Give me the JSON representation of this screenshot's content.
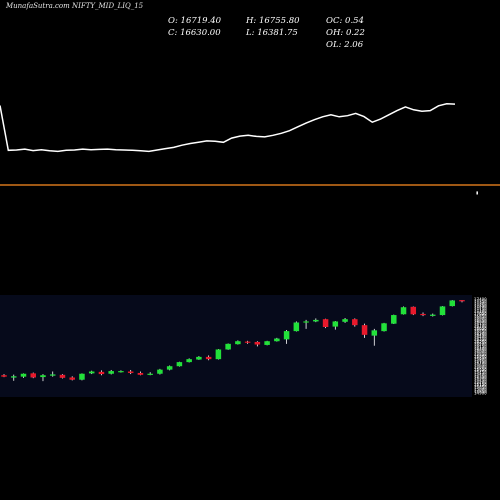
{
  "header": {
    "symbol": "MunafaSutra.com NIFTY_MID_LIQ_15",
    "open": "O: 16719.40",
    "close": "C: 16630.00",
    "high": "H: 16755.80",
    "low": "L: 16381.75",
    "oc": "OC: 0.54",
    "oh": "OH: 0.22",
    "ol": "OL: 2.06"
  },
  "colors": {
    "background": "#000000",
    "line": "#ffffff",
    "divider": "#d4751a",
    "up": "#22e13a",
    "down": "#e8192c",
    "grid": "#1a2a6c"
  },
  "chart_data": [
    {
      "type": "line",
      "title": "",
      "values": [
        16900,
        15320,
        15330,
        15360,
        15310,
        15340,
        15300,
        15280,
        15320,
        15330,
        15360,
        15340,
        15350,
        15360,
        15340,
        15330,
        15320,
        15300,
        15280,
        15330,
        15380,
        15420,
        15500,
        15560,
        15600,
        15650,
        15640,
        15600,
        15750,
        15820,
        15850,
        15810,
        15790,
        15850,
        15920,
        16010,
        16150,
        16280,
        16400,
        16500,
        16570,
        16500,
        16540,
        16620,
        16510,
        16310,
        16420,
        16570,
        16720,
        16850,
        16750,
        16700,
        16720,
        16890,
        16960,
        16950
      ],
      "ylim": [
        14800,
        17800
      ]
    },
    {
      "type": "candlestick",
      "ohlc": [
        [
          15380,
          15410,
          15330,
          15340
        ],
        [
          15330,
          15395,
          15230,
          15350
        ],
        [
          15340,
          15430,
          15310,
          15420
        ],
        [
          15430,
          15450,
          15300,
          15320
        ],
        [
          15330,
          15410,
          15220,
          15380
        ],
        [
          15390,
          15480,
          15340,
          15400
        ],
        [
          15390,
          15410,
          15290,
          15310
        ],
        [
          15320,
          15350,
          15240,
          15260
        ],
        [
          15260,
          15430,
          15240,
          15420
        ],
        [
          15430,
          15500,
          15410,
          15480
        ],
        [
          15470,
          15510,
          15380,
          15410
        ],
        [
          15420,
          15520,
          15400,
          15490
        ],
        [
          15480,
          15510,
          15450,
          15490
        ],
        [
          15480,
          15520,
          15410,
          15440
        ],
        [
          15440,
          15480,
          15380,
          15390
        ],
        [
          15390,
          15460,
          15380,
          15420
        ],
        [
          15420,
          15550,
          15400,
          15530
        ],
        [
          15530,
          15640,
          15510,
          15620
        ],
        [
          15620,
          15740,
          15610,
          15730
        ],
        [
          15730,
          15830,
          15720,
          15810
        ],
        [
          15800,
          15890,
          15790,
          15870
        ],
        [
          15870,
          15910,
          15780,
          15810
        ],
        [
          15810,
          16080,
          15800,
          16070
        ],
        [
          16070,
          16230,
          16060,
          16220
        ],
        [
          16210,
          16310,
          16200,
          16290
        ],
        [
          16280,
          16300,
          16220,
          16260
        ],
        [
          16270,
          16290,
          16150,
          16200
        ],
        [
          16190,
          16300,
          16180,
          16290
        ],
        [
          16290,
          16380,
          16280,
          16360
        ],
        [
          16340,
          16590,
          16220,
          16560
        ],
        [
          16560,
          16820,
          16550,
          16790
        ],
        [
          16800,
          16860,
          16620,
          16820
        ],
        [
          16820,
          16900,
          16800,
          16860
        ],
        [
          16880,
          16890,
          16640,
          16670
        ],
        [
          16680,
          16830,
          16600,
          16820
        ],
        [
          16810,
          16910,
          16780,
          16880
        ],
        [
          16880,
          16900,
          16680,
          16720
        ],
        [
          16720,
          16760,
          16380,
          16460
        ],
        [
          16440,
          16620,
          16170,
          16580
        ],
        [
          16560,
          16780,
          16550,
          16770
        ],
        [
          16760,
          17000,
          16750,
          16990
        ],
        [
          17010,
          17220,
          17000,
          17200
        ],
        [
          17210,
          17220,
          16990,
          17010
        ],
        [
          17020,
          17060,
          16960,
          16990
        ],
        [
          16990,
          17030,
          16950,
          17000
        ],
        [
          16990,
          17230,
          16980,
          17220
        ],
        [
          17230,
          17390,
          17220,
          17380
        ],
        [
          17390,
          17390,
          17330,
          17370
        ]
      ],
      "ylim": [
        14850,
        17500
      ]
    }
  ]
}
